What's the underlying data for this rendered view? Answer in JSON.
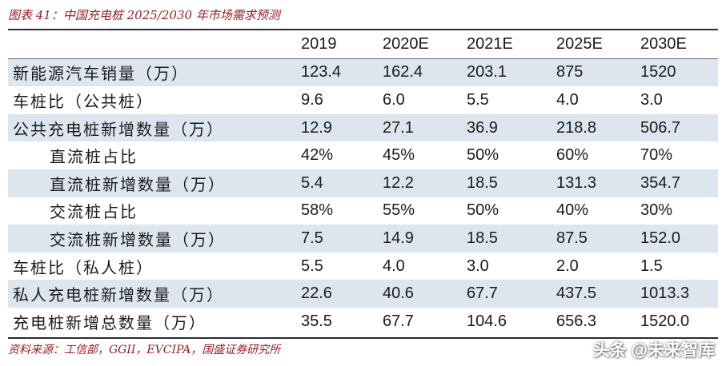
{
  "caption": "图表 41：中国充电桩 2025/2030 年市场需求预测",
  "table": {
    "headers": [
      "",
      "2019",
      "2020E",
      "2021E",
      "2025E",
      "2030E"
    ],
    "rows": [
      {
        "label": "新能源汽车销量（万）",
        "values": [
          "123.4",
          "162.4",
          "203.1",
          "875",
          "1520"
        ]
      },
      {
        "label": "车桩比（公共桩）",
        "values": [
          "9.6",
          "6.0",
          "5.5",
          "4.0",
          "3.0"
        ]
      },
      {
        "label": "公共充电桩新增数量（万）",
        "values": [
          "12.9",
          "27.1",
          "36.9",
          "218.8",
          "506.7"
        ]
      },
      {
        "label": "直流桩占比",
        "values": [
          "42%",
          "45%",
          "50%",
          "60%",
          "70%"
        ]
      },
      {
        "label": "直流桩新增数量（万）",
        "values": [
          "5.4",
          "12.2",
          "18.5",
          "131.3",
          "354.7"
        ]
      },
      {
        "label": "交流桩占比",
        "values": [
          "58%",
          "55%",
          "50%",
          "40%",
          "30%"
        ]
      },
      {
        "label": "交流桩新增数量（万）",
        "values": [
          "7.5",
          "14.9",
          "18.5",
          "87.5",
          "152.0"
        ]
      },
      {
        "label": "车桩比（私人桩）",
        "values": [
          "5.5",
          "4.0",
          "3.0",
          "2.0",
          "1.5"
        ]
      },
      {
        "label": "私人充电桩新增数量（万）",
        "values": [
          "22.6",
          "40.6",
          "67.7",
          "437.5",
          "1013.3"
        ]
      },
      {
        "label": "充电桩新增总数量（万）",
        "values": [
          "35.5",
          "67.7",
          "104.6",
          "656.3",
          "1520.0"
        ]
      }
    ]
  },
  "source": "资料来源：工信部，GGII，EVCIPA，国盛证券研究所",
  "watermark": "头条 @未来智库",
  "colors": {
    "caption": "#9b1b1f",
    "row_shade": "#dde5ef",
    "rule": "#2d2d2d"
  }
}
